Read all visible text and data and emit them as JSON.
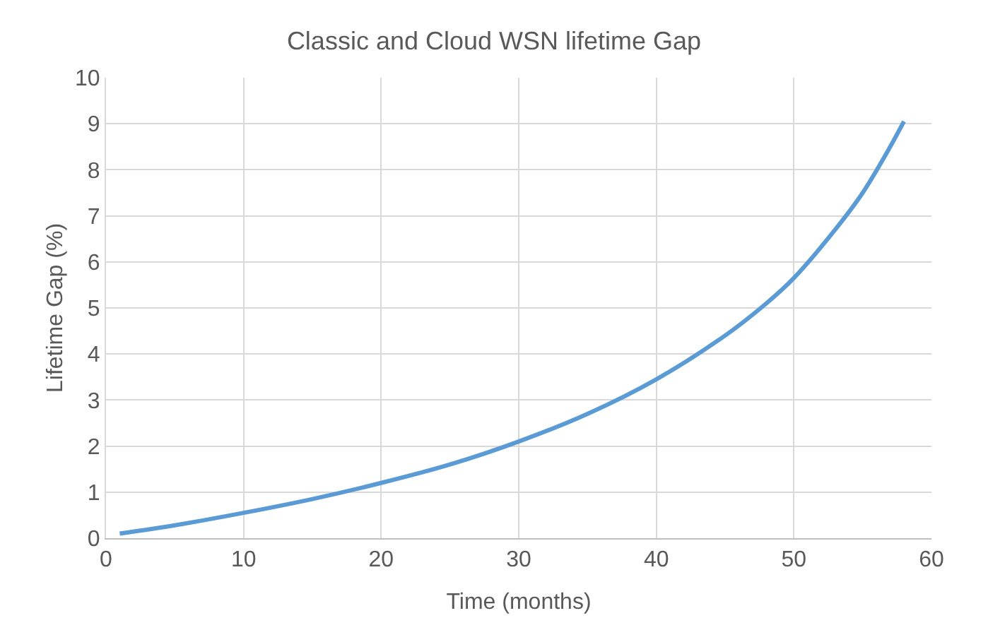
{
  "chart_data": {
    "type": "line",
    "title": "Classic and Cloud WSN lifetime Gap",
    "xlabel": "Time (months)",
    "ylabel": "Lifetime Gap (%)",
    "x": [
      1,
      5,
      10,
      15,
      20,
      25,
      30,
      35,
      40,
      45,
      48,
      50,
      53,
      55,
      57,
      58
    ],
    "series": [
      {
        "color": "#5b9bd5",
        "values": [
          0.1,
          0.28,
          0.55,
          0.85,
          1.2,
          1.6,
          2.1,
          2.7,
          3.45,
          4.4,
          5.1,
          5.65,
          6.7,
          7.5,
          8.5,
          9.05
        ]
      }
    ],
    "xlim": [
      0,
      60
    ],
    "xticks": [
      0,
      10,
      20,
      30,
      40,
      50,
      60
    ],
    "ylim": [
      0,
      10
    ],
    "yticks": [
      0,
      1,
      2,
      3,
      4,
      5,
      6,
      7,
      8,
      9,
      10
    ],
    "grid": true,
    "legend": false,
    "marker": "none",
    "line_style": "solid"
  }
}
